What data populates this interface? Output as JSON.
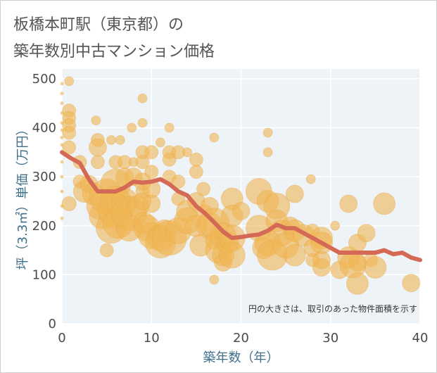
{
  "title_line1": "板橋本町駅（東京都）の",
  "title_line2": "築年数別中古マンション価格",
  "colors": {
    "bubble": "#f0b654",
    "bubble_stroke": "#e8a23c",
    "line": "#d46a55",
    "plot_bg": "#eef3f8",
    "grid": "#ffffff"
  },
  "chart_data": {
    "type": "scatter",
    "xlabel": "築年数（年）",
    "ylabel": "坪（3.3㎡）単価（万円）",
    "xlim": [
      0,
      40
    ],
    "ylim": [
      0,
      520
    ],
    "xticks": [
      0,
      10,
      20,
      30,
      40
    ],
    "yticks": [
      0,
      100,
      200,
      300,
      400,
      500
    ],
    "note": "円の大きさは、取引のあった物件面積を示す",
    "grid": true,
    "trend_line": {
      "x": [
        0,
        1,
        2,
        3,
        4,
        5,
        6,
        7,
        8,
        9,
        10,
        11,
        12,
        13,
        14,
        15,
        16,
        17,
        18,
        19,
        20,
        21,
        22,
        23,
        24,
        25,
        26,
        27,
        28,
        29,
        30,
        31,
        32,
        33,
        34,
        35,
        36,
        37,
        38,
        39,
        40
      ],
      "y": [
        350,
        338,
        328,
        295,
        270,
        270,
        270,
        278,
        290,
        288,
        290,
        295,
        285,
        270,
        262,
        240,
        225,
        207,
        188,
        175,
        177,
        180,
        182,
        190,
        202,
        195,
        195,
        185,
        175,
        165,
        155,
        145,
        145,
        145,
        145,
        145,
        150,
        142,
        145,
        135,
        130
      ]
    },
    "points": [
      {
        "x": 0,
        "y": 490,
        "s": 1
      },
      {
        "x": 0,
        "y": 470,
        "s": 1
      },
      {
        "x": 0,
        "y": 450,
        "s": 2
      },
      {
        "x": 0,
        "y": 430,
        "s": 2
      },
      {
        "x": 0,
        "y": 410,
        "s": 3
      },
      {
        "x": 0,
        "y": 395,
        "s": 2
      },
      {
        "x": 0,
        "y": 380,
        "s": 3
      },
      {
        "x": 0,
        "y": 365,
        "s": 2
      },
      {
        "x": 0,
        "y": 350,
        "s": 4
      },
      {
        "x": 0,
        "y": 330,
        "s": 3
      },
      {
        "x": 0,
        "y": 300,
        "s": 5
      },
      {
        "x": 0,
        "y": 270,
        "s": 3
      },
      {
        "x": 0,
        "y": 240,
        "s": 3
      },
      {
        "x": 0,
        "y": 215,
        "s": 4
      },
      {
        "x": 0.8,
        "y": 495,
        "s": 1
      },
      {
        "x": 0.8,
        "y": 435,
        "s": 2
      },
      {
        "x": 0.8,
        "y": 420,
        "s": 2
      },
      {
        "x": 0.8,
        "y": 405,
        "s": 2
      },
      {
        "x": 0.8,
        "y": 390,
        "s": 2
      },
      {
        "x": 0.8,
        "y": 360,
        "s": 2
      },
      {
        "x": 0.8,
        "y": 245,
        "s": 5
      },
      {
        "x": 2,
        "y": 330,
        "s": 2
      },
      {
        "x": 2,
        "y": 290,
        "s": 2
      },
      {
        "x": 2.5,
        "y": 270,
        "s": 4
      },
      {
        "x": 3,
        "y": 285,
        "s": 3
      },
      {
        "x": 3.5,
        "y": 265,
        "s": 4
      },
      {
        "x": 4,
        "y": 375,
        "s": 2
      },
      {
        "x": 4,
        "y": 360,
        "s": 3
      },
      {
        "x": 4,
        "y": 330,
        "s": 2
      },
      {
        "x": 3.8,
        "y": 415,
        "s": 1
      },
      {
        "x": 4.2,
        "y": 240,
        "s": 5
      },
      {
        "x": 4.5,
        "y": 220,
        "s": 5
      },
      {
        "x": 5,
        "y": 260,
        "s": 7
      },
      {
        "x": 5,
        "y": 150,
        "s": 2
      },
      {
        "x": 5.5,
        "y": 195,
        "s": 6
      },
      {
        "x": 5.5,
        "y": 375,
        "s": 1
      },
      {
        "x": 6,
        "y": 330,
        "s": 2
      },
      {
        "x": 6,
        "y": 285,
        "s": 6
      },
      {
        "x": 6,
        "y": 250,
        "s": 6
      },
      {
        "x": 6,
        "y": 230,
        "s": 7
      },
      {
        "x": 6.3,
        "y": 205,
        "s": 6
      },
      {
        "x": 6.5,
        "y": 375,
        "s": 1
      },
      {
        "x": 7,
        "y": 330,
        "s": 2
      },
      {
        "x": 7,
        "y": 300,
        "s": 3
      },
      {
        "x": 7,
        "y": 250,
        "s": 5
      },
      {
        "x": 7.5,
        "y": 225,
        "s": 7
      },
      {
        "x": 7.5,
        "y": 195,
        "s": 5
      },
      {
        "x": 7.8,
        "y": 400,
        "s": 1
      },
      {
        "x": 8,
        "y": 330,
        "s": 1
      },
      {
        "x": 8,
        "y": 300,
        "s": 3
      },
      {
        "x": 8.5,
        "y": 240,
        "s": 4
      },
      {
        "x": 9,
        "y": 460,
        "s": 1
      },
      {
        "x": 9,
        "y": 410,
        "s": 1
      },
      {
        "x": 9,
        "y": 350,
        "s": 2
      },
      {
        "x": 9,
        "y": 330,
        "s": 2
      },
      {
        "x": 9,
        "y": 290,
        "s": 3
      },
      {
        "x": 9,
        "y": 270,
        "s": 2
      },
      {
        "x": 9,
        "y": 250,
        "s": 3
      },
      {
        "x": 9.2,
        "y": 205,
        "s": 4
      },
      {
        "x": 9.5,
        "y": 195,
        "s": 5
      },
      {
        "x": 10,
        "y": 350,
        "s": 2
      },
      {
        "x": 10,
        "y": 310,
        "s": 2
      },
      {
        "x": 10,
        "y": 275,
        "s": 3
      },
      {
        "x": 10,
        "y": 245,
        "s": 3
      },
      {
        "x": 10,
        "y": 180,
        "s": 5
      },
      {
        "x": 11,
        "y": 370,
        "s": 1
      },
      {
        "x": 11,
        "y": 175,
        "s": 5
      },
      {
        "x": 11,
        "y": 165,
        "s": 6
      },
      {
        "x": 11.5,
        "y": 190,
        "s": 4
      },
      {
        "x": 12,
        "y": 400,
        "s": 1
      },
      {
        "x": 12,
        "y": 350,
        "s": 2
      },
      {
        "x": 12,
        "y": 335,
        "s": 2
      },
      {
        "x": 12,
        "y": 300,
        "s": 2
      },
      {
        "x": 12,
        "y": 175,
        "s": 7
      },
      {
        "x": 13,
        "y": 350,
        "s": 2
      },
      {
        "x": 13,
        "y": 290,
        "s": 2
      },
      {
        "x": 13,
        "y": 255,
        "s": 2
      },
      {
        "x": 13,
        "y": 190,
        "s": 5
      },
      {
        "x": 14,
        "y": 350,
        "s": 1
      },
      {
        "x": 14,
        "y": 230,
        "s": 4
      },
      {
        "x": 14,
        "y": 210,
        "s": 5
      },
      {
        "x": 15,
        "y": 335,
        "s": 2
      },
      {
        "x": 15,
        "y": 310,
        "s": 2
      },
      {
        "x": 15,
        "y": 250,
        "s": 3
      },
      {
        "x": 15,
        "y": 200,
        "s": 4
      },
      {
        "x": 15.5,
        "y": 160,
        "s": 4
      },
      {
        "x": 15.8,
        "y": 275,
        "s": 2
      },
      {
        "x": 16,
        "y": 230,
        "s": 2
      },
      {
        "x": 16.5,
        "y": 200,
        "s": 5
      },
      {
        "x": 16.5,
        "y": 240,
        "s": 3
      },
      {
        "x": 17,
        "y": 380,
        "s": 1
      },
      {
        "x": 17,
        "y": 90,
        "s": 1
      },
      {
        "x": 17,
        "y": 205,
        "s": 6
      },
      {
        "x": 17,
        "y": 170,
        "s": 3
      },
      {
        "x": 17.5,
        "y": 150,
        "s": 5
      },
      {
        "x": 18,
        "y": 180,
        "s": 5
      },
      {
        "x": 18,
        "y": 140,
        "s": 4
      },
      {
        "x": 18,
        "y": 125,
        "s": 3
      },
      {
        "x": 18.5,
        "y": 165,
        "s": 4
      },
      {
        "x": 19,
        "y": 255,
        "s": 4
      },
      {
        "x": 19,
        "y": 220,
        "s": 4
      },
      {
        "x": 19,
        "y": 175,
        "s": 5
      },
      {
        "x": 19,
        "y": 140,
        "s": 5
      },
      {
        "x": 20,
        "y": 230,
        "s": 3
      },
      {
        "x": 22,
        "y": 270,
        "s": 5
      },
      {
        "x": 22,
        "y": 195,
        "s": 5
      },
      {
        "x": 22.5,
        "y": 155,
        "s": 4
      },
      {
        "x": 23,
        "y": 390,
        "s": 1
      },
      {
        "x": 23,
        "y": 350,
        "s": 1
      },
      {
        "x": 23,
        "y": 250,
        "s": 4
      },
      {
        "x": 23,
        "y": 165,
        "s": 5
      },
      {
        "x": 23.5,
        "y": 140,
        "s": 6
      },
      {
        "x": 24,
        "y": 240,
        "s": 5
      },
      {
        "x": 24,
        "y": 210,
        "s": 4
      },
      {
        "x": 24.5,
        "y": 185,
        "s": 5
      },
      {
        "x": 25,
        "y": 160,
        "s": 5
      },
      {
        "x": 25.5,
        "y": 200,
        "s": 3
      },
      {
        "x": 26,
        "y": 265,
        "s": 3
      },
      {
        "x": 26,
        "y": 190,
        "s": 4
      },
      {
        "x": 26,
        "y": 140,
        "s": 4
      },
      {
        "x": 27,
        "y": 180,
        "s": 4
      },
      {
        "x": 27.8,
        "y": 295,
        "s": 1
      },
      {
        "x": 28,
        "y": 190,
        "s": 2
      },
      {
        "x": 28,
        "y": 155,
        "s": 3
      },
      {
        "x": 28,
        "y": 130,
        "s": 2
      },
      {
        "x": 29,
        "y": 175,
        "s": 4
      },
      {
        "x": 29,
        "y": 165,
        "s": 4
      },
      {
        "x": 29,
        "y": 130,
        "s": 3
      },
      {
        "x": 29,
        "y": 115,
        "s": 3
      },
      {
        "x": 30.5,
        "y": 200,
        "s": 1
      },
      {
        "x": 31,
        "y": 110,
        "s": 3
      },
      {
        "x": 32,
        "y": 245,
        "s": 3
      },
      {
        "x": 32,
        "y": 135,
        "s": 4
      },
      {
        "x": 32.5,
        "y": 120,
        "s": 5
      },
      {
        "x": 33,
        "y": 165,
        "s": 3
      },
      {
        "x": 33,
        "y": 125,
        "s": 3
      },
      {
        "x": 33,
        "y": 82,
        "s": 4
      },
      {
        "x": 34,
        "y": 185,
        "s": 3
      },
      {
        "x": 34.5,
        "y": 130,
        "s": 2
      },
      {
        "x": 35,
        "y": 115,
        "s": 4
      },
      {
        "x": 36,
        "y": 245,
        "s": 4
      },
      {
        "x": 39,
        "y": 83,
        "s": 3
      }
    ]
  }
}
